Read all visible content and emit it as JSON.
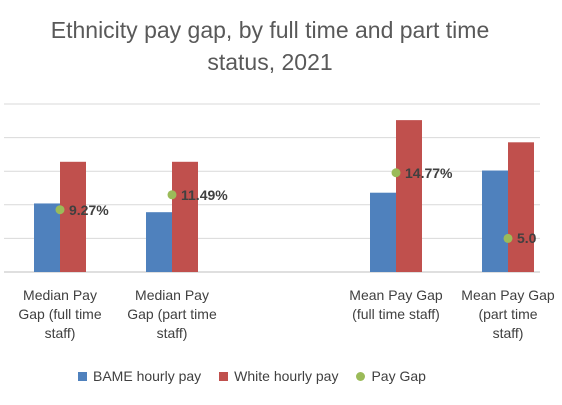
{
  "chart_data": {
    "type": "bar",
    "title_line1": "Ethnicity pay gap, by full time and part time",
    "title_line2": "status, 2021",
    "categories": [
      [
        "Median Pay",
        "Gap (full time",
        "staff)"
      ],
      [
        "Median Pay",
        "Gap (part time",
        "staff)"
      ],
      [
        "Mean Pay Gap",
        "(full time staff)",
        ""
      ],
      [
        "Mean Pay Gap",
        "(part time",
        "staff)"
      ]
    ],
    "series": [
      {
        "name": "BAME hourly pay",
        "type": "bar",
        "color": "#4f81bd",
        "values": [
          10.2,
          8.9,
          11.8,
          15.1
        ]
      },
      {
        "name": "White hourly pay",
        "type": "bar",
        "color": "#c0504d",
        "values": [
          16.4,
          16.4,
          22.6,
          19.3
        ]
      },
      {
        "name": "Pay Gap",
        "type": "scatter",
        "color": "#9bbb59",
        "values": [
          9.27,
          11.49,
          14.77,
          5.0
        ],
        "labels": [
          "9.27%",
          "11.49%",
          "14.77%",
          "5.0"
        ]
      }
    ],
    "ylim": [
      0,
      25
    ],
    "grid": true,
    "legend_position": "bottom"
  }
}
